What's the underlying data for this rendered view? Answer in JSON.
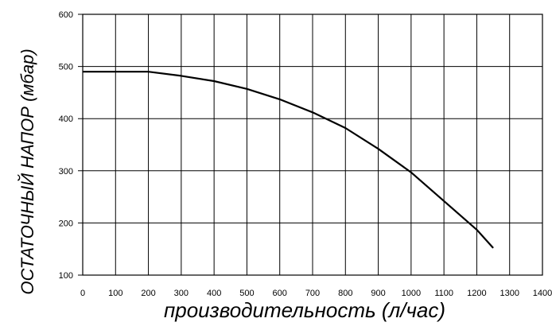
{
  "chart_data": {
    "type": "line",
    "title": "",
    "xlabel": "производительность (л/час)",
    "ylabel": "ОСТАТОЧНЫЙ НАПОР (мбар)",
    "xlim": [
      0,
      1400
    ],
    "ylim": [
      100,
      600
    ],
    "x_ticks": [
      0,
      100,
      200,
      300,
      400,
      500,
      600,
      700,
      800,
      900,
      1000,
      1100,
      1200,
      1300,
      1400
    ],
    "y_ticks": [
      100,
      200,
      300,
      400,
      500,
      600
    ],
    "grid": true,
    "series": [
      {
        "x": [
          0,
          100,
          200,
          300,
          400,
          500,
          600,
          700,
          800,
          900,
          1000,
          1100,
          1200,
          1250
        ],
        "y": [
          490,
          490,
          490,
          482,
          472,
          457,
          437,
          412,
          382,
          342,
          297,
          242,
          187,
          152
        ]
      }
    ]
  }
}
